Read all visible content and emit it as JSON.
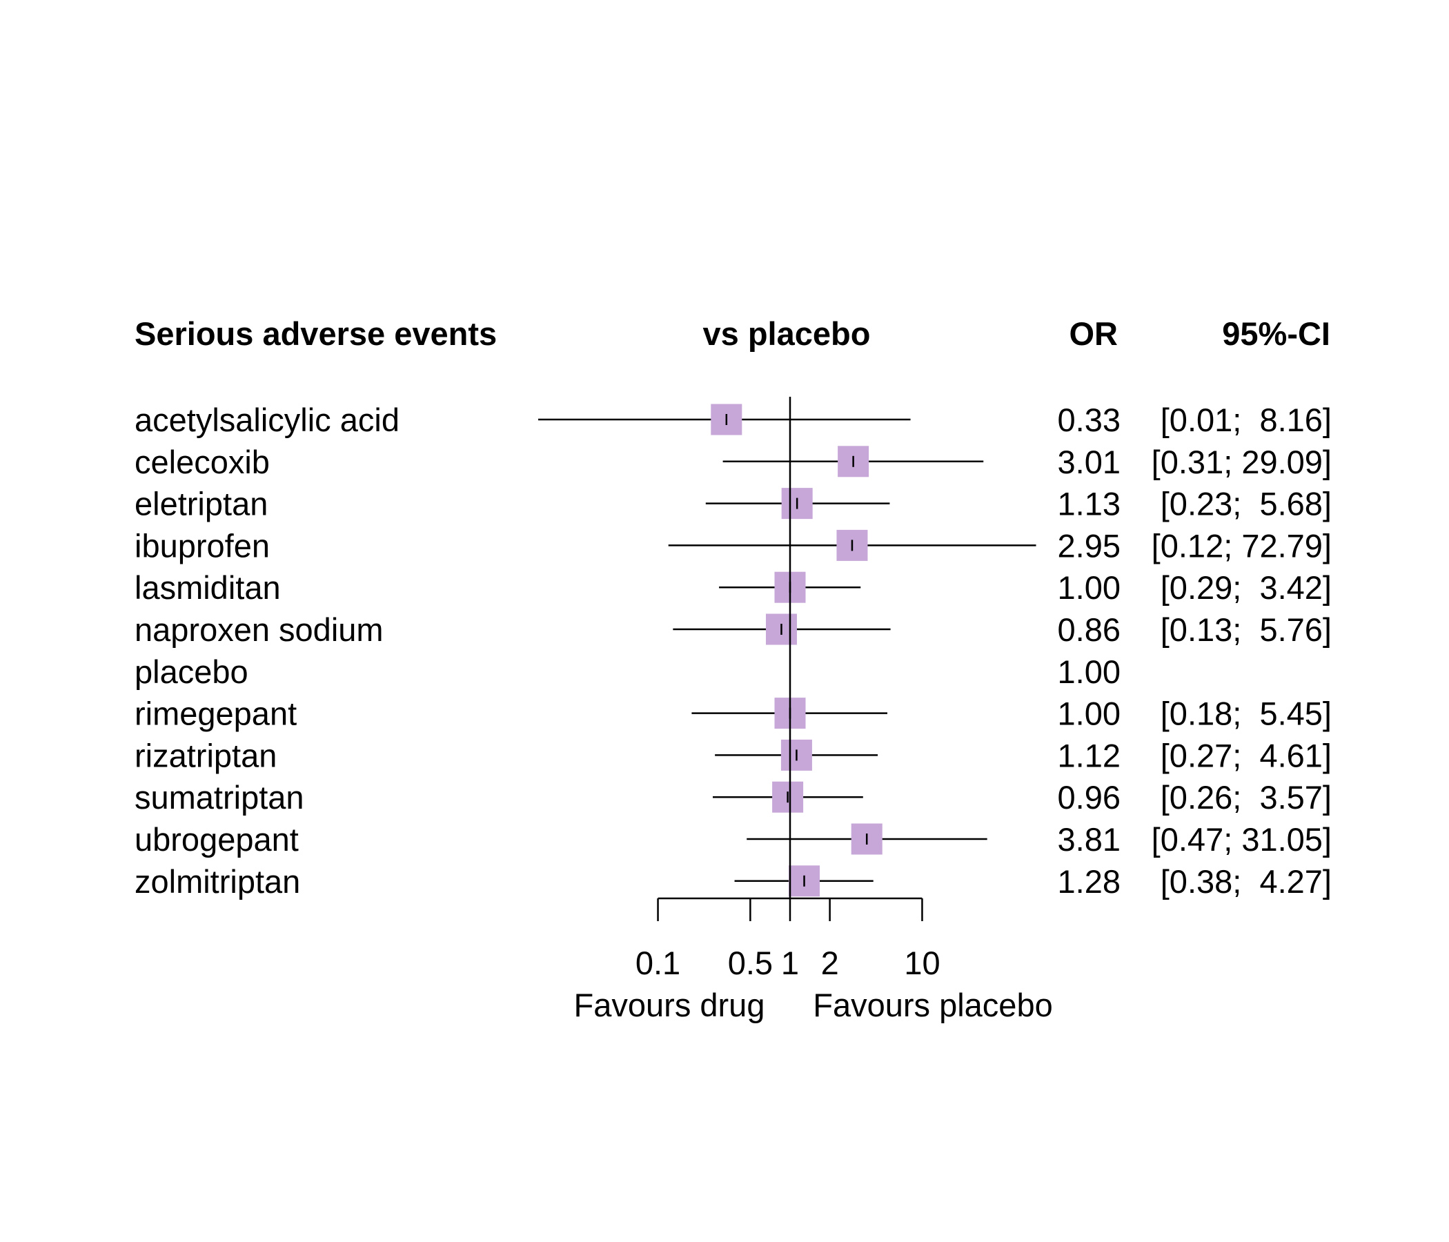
{
  "chart_data": {
    "type": "forest",
    "headers": {
      "label": "Serious adverse events",
      "plot": "vs placebo",
      "estimate": "OR",
      "ci": "95%-CI"
    },
    "x_scale": "log",
    "xlim": [
      0.1,
      10
    ],
    "reference_line": 1,
    "x_ticks": [
      0.1,
      0.5,
      1,
      2,
      10
    ],
    "x_tick_labels": [
      "0.1",
      "0.5",
      "1",
      "2",
      "10"
    ],
    "favours_left": "Favours drug",
    "favours_right": "Favours placebo",
    "marker_color": "#c6a7d8",
    "rows": [
      {
        "label": "acetylsalicylic acid",
        "or": 0.33,
        "lower": 0.01,
        "upper": 8.16,
        "or_text": "0.33",
        "ci_text": "[0.01;  8.16]"
      },
      {
        "label": "celecoxib",
        "or": 3.01,
        "lower": 0.31,
        "upper": 29.09,
        "or_text": "3.01",
        "ci_text": "[0.31; 29.09]"
      },
      {
        "label": "eletriptan",
        "or": 1.13,
        "lower": 0.23,
        "upper": 5.68,
        "or_text": "1.13",
        "ci_text": "[0.23;  5.68]"
      },
      {
        "label": "ibuprofen",
        "or": 2.95,
        "lower": 0.12,
        "upper": 72.79,
        "or_text": "2.95",
        "ci_text": "[0.12; 72.79]"
      },
      {
        "label": "lasmiditan",
        "or": 1.0,
        "lower": 0.29,
        "upper": 3.42,
        "or_text": "1.00",
        "ci_text": "[0.29;  3.42]"
      },
      {
        "label": "naproxen sodium",
        "or": 0.86,
        "lower": 0.13,
        "upper": 5.76,
        "or_text": "0.86",
        "ci_text": "[0.13;  5.76]"
      },
      {
        "label": "placebo",
        "or": 1.0,
        "lower": null,
        "upper": null,
        "or_text": "1.00",
        "ci_text": ""
      },
      {
        "label": "rimegepant",
        "or": 1.0,
        "lower": 0.18,
        "upper": 5.45,
        "or_text": "1.00",
        "ci_text": "[0.18;  5.45]"
      },
      {
        "label": "rizatriptan",
        "or": 1.12,
        "lower": 0.27,
        "upper": 4.61,
        "or_text": "1.12",
        "ci_text": "[0.27;  4.61]"
      },
      {
        "label": "sumatriptan",
        "or": 0.96,
        "lower": 0.26,
        "upper": 3.57,
        "or_text": "0.96",
        "ci_text": "[0.26;  3.57]"
      },
      {
        "label": "ubrogepant",
        "or": 3.81,
        "lower": 0.47,
        "upper": 31.05,
        "or_text": "3.81",
        "ci_text": "[0.47; 31.05]"
      },
      {
        "label": "zolmitriptan",
        "or": 1.28,
        "lower": 0.38,
        "upper": 4.27,
        "or_text": "1.28",
        "ci_text": "[0.38;  4.27]"
      }
    ]
  }
}
